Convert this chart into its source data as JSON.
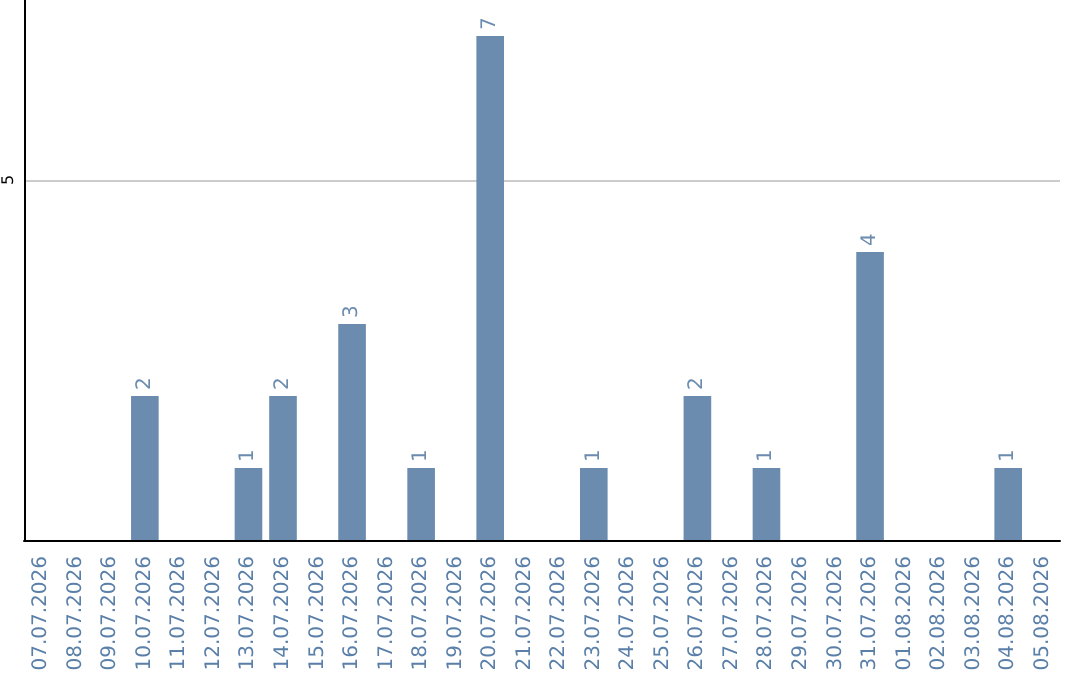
{
  "chart_data": {
    "type": "bar",
    "categories": [
      "07.07.2026",
      "08.07.2026",
      "09.07.2026",
      "10.07.2026",
      "11.07.2026",
      "12.07.2026",
      "13.07.2026",
      "14.07.2026",
      "15.07.2026",
      "16.07.2026",
      "17.07.2026",
      "18.07.2026",
      "19.07.2026",
      "20.07.2026",
      "21.07.2026",
      "22.07.2026",
      "23.07.2026",
      "24.07.2026",
      "25.07.2026",
      "26.07.2026",
      "27.07.2026",
      "28.07.2026",
      "29.07.2026",
      "30.07.2026",
      "31.07.2026",
      "01.08.2026",
      "02.08.2026",
      "03.08.2026",
      "04.08.2026",
      "05.08.2026"
    ],
    "values": [
      0,
      0,
      0,
      2,
      0,
      0,
      1,
      2,
      0,
      3,
      0,
      1,
      0,
      7,
      0,
      0,
      1,
      0,
      0,
      2,
      0,
      1,
      0,
      0,
      4,
      0,
      0,
      0,
      1,
      0
    ],
    "value_labels": [
      null,
      null,
      null,
      "2",
      null,
      null,
      "1",
      "2",
      null,
      "3",
      null,
      "1",
      null,
      "7",
      null,
      null,
      "1",
      null,
      null,
      "2",
      null,
      "1",
      null,
      null,
      "4",
      null,
      null,
      null,
      "1",
      null
    ],
    "color": "#6b8cae",
    "ylim": [
      0,
      7.5
    ],
    "yticks": [
      5
    ],
    "grid": "y"
  }
}
